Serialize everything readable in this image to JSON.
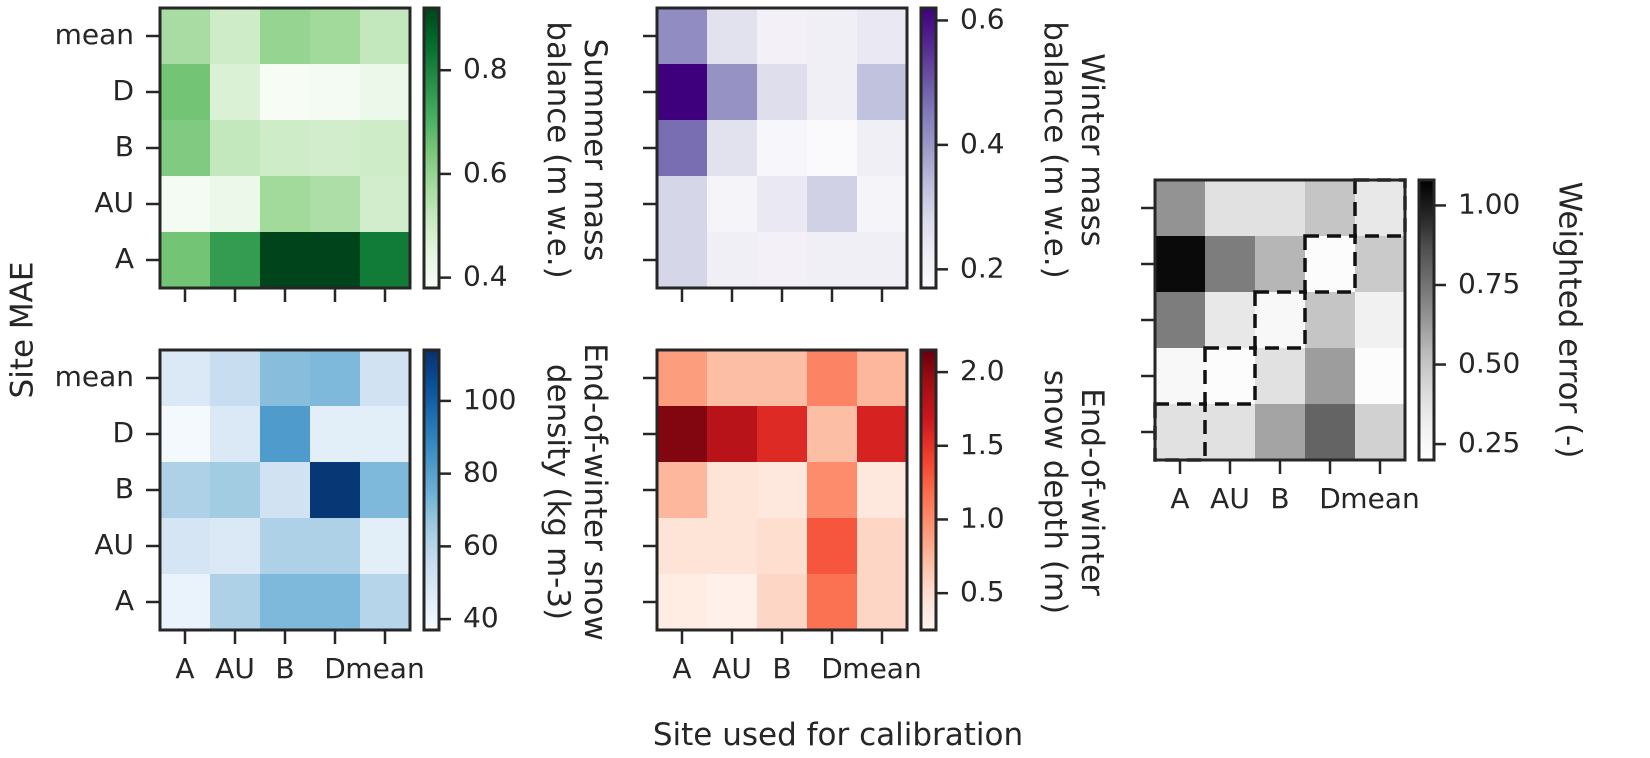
{
  "figure": {
    "xlabel": "Site used for calibration",
    "ylabel": "Site MAE"
  },
  "chart_data": [
    {
      "type": "heatmap",
      "id": "summer",
      "x_categories": [
        "A",
        "AU",
        "B",
        "D",
        "mean"
      ],
      "y_categories": [
        "mean",
        "D",
        "B",
        "AU",
        "A"
      ],
      "values": [
        [
          0.57,
          0.5,
          0.6,
          0.58,
          0.52
        ],
        [
          0.65,
          0.47,
          0.38,
          0.39,
          0.42
        ],
        [
          0.63,
          0.52,
          0.5,
          0.49,
          0.5
        ],
        [
          0.39,
          0.42,
          0.58,
          0.56,
          0.49
        ],
        [
          0.65,
          0.75,
          0.95,
          0.95,
          0.82
        ]
      ],
      "colormap": "Greens",
      "vmin": 0.38,
      "vmax": 0.92,
      "colorbar_ticks": [
        0.4,
        0.6,
        0.8
      ],
      "colorbar_tick_labels": [
        "0.4",
        "0.6",
        "0.8"
      ],
      "colorbar_label": [
        "Summer mass",
        "balance (m w.e.)"
      ],
      "show_x_tick_labels": false,
      "show_y_tick_labels": true
    },
    {
      "type": "heatmap",
      "id": "winter",
      "x_categories": [
        "A",
        "AU",
        "B",
        "D",
        "mean"
      ],
      "y_categories": [
        "mean",
        "D",
        "B",
        "AU",
        "A"
      ],
      "values": [
        [
          0.42,
          0.26,
          0.21,
          0.22,
          0.24
        ],
        [
          0.62,
          0.41,
          0.27,
          0.22,
          0.33
        ],
        [
          0.47,
          0.26,
          0.19,
          0.18,
          0.22
        ],
        [
          0.29,
          0.2,
          0.24,
          0.3,
          0.2
        ],
        [
          0.29,
          0.22,
          0.21,
          0.22,
          0.22
        ]
      ],
      "colormap": "Purples",
      "vmin": 0.17,
      "vmax": 0.62,
      "colorbar_ticks": [
        0.2,
        0.4,
        0.6
      ],
      "colorbar_tick_labels": [
        "0.2",
        "0.4",
        "0.6"
      ],
      "colorbar_label": [
        "Winter mass",
        "balance (m w.e.)"
      ],
      "show_x_tick_labels": false,
      "show_y_tick_labels": false
    },
    {
      "type": "heatmap",
      "id": "density",
      "x_categories": [
        "A",
        "AU",
        "B",
        "D",
        "mean"
      ],
      "y_categories": [
        "mean",
        "D",
        "B",
        "AU",
        "A"
      ],
      "values": [
        [
          48,
          55,
          70,
          72,
          52
        ],
        [
          38,
          48,
          82,
          45,
          45
        ],
        [
          62,
          65,
          52,
          112,
          72
        ],
        [
          50,
          48,
          62,
          62,
          45
        ],
        [
          42,
          62,
          72,
          72,
          60
        ]
      ],
      "colormap": "Blues",
      "vmin": 37,
      "vmax": 114,
      "colorbar_ticks": [
        40,
        60,
        80,
        100
      ],
      "colorbar_tick_labels": [
        "40",
        "60",
        "80",
        "100"
      ],
      "colorbar_label": [
        "End-of-winter snow",
        "density (kg m-3)"
      ],
      "show_x_tick_labels": true,
      "show_y_tick_labels": true
    },
    {
      "type": "heatmap",
      "id": "depth",
      "x_categories": [
        "A",
        "AU",
        "B",
        "D",
        "mean"
      ],
      "y_categories": [
        "mean",
        "D",
        "B",
        "AU",
        "A"
      ],
      "values": [
        [
          0.9,
          0.7,
          0.7,
          1.05,
          0.75
        ],
        [
          2.05,
          1.8,
          1.55,
          0.7,
          1.6
        ],
        [
          0.75,
          0.45,
          0.4,
          1.0,
          0.4
        ],
        [
          0.45,
          0.45,
          0.5,
          1.3,
          0.55
        ],
        [
          0.35,
          0.3,
          0.55,
          1.15,
          0.55
        ]
      ],
      "colormap": "Reds",
      "vmin": 0.25,
      "vmax": 2.15,
      "colorbar_ticks": [
        0.5,
        1.0,
        1.5,
        2.0
      ],
      "colorbar_tick_labels": [
        "0.5",
        "1.0",
        "1.5",
        "2.0"
      ],
      "colorbar_label": [
        "End-of-winter",
        "snow depth (m)"
      ],
      "show_x_tick_labels": true,
      "show_y_tick_labels": false
    },
    {
      "type": "heatmap",
      "id": "weighted",
      "x_categories": [
        "A",
        "AU",
        "B",
        "D",
        "mean"
      ],
      "y_categories": [
        "",
        "",
        "",
        "",
        ""
      ],
      "values": [
        [
          0.65,
          0.38,
          0.38,
          0.5,
          0.35
        ],
        [
          1.05,
          0.72,
          0.55,
          0.22,
          0.48
        ],
        [
          0.72,
          0.35,
          0.25,
          0.5,
          0.3
        ],
        [
          0.25,
          0.22,
          0.38,
          0.62,
          0.22
        ],
        [
          0.38,
          0.38,
          0.6,
          0.8,
          0.45
        ]
      ],
      "colormap": "Greys",
      "vmin": 0.2,
      "vmax": 1.08,
      "colorbar_ticks": [
        0.25,
        0.5,
        0.75,
        1.0
      ],
      "colorbar_tick_labels": [
        "0.25",
        "0.50",
        "0.75",
        "1.00"
      ],
      "colorbar_label": [
        "Weighted error (-)"
      ],
      "highlight_cells": [
        [
          0,
          4
        ],
        [
          1,
          3
        ],
        [
          2,
          2
        ],
        [
          3,
          1
        ],
        [
          4,
          0
        ]
      ],
      "show_x_tick_labels": true,
      "show_y_tick_labels": false
    }
  ]
}
